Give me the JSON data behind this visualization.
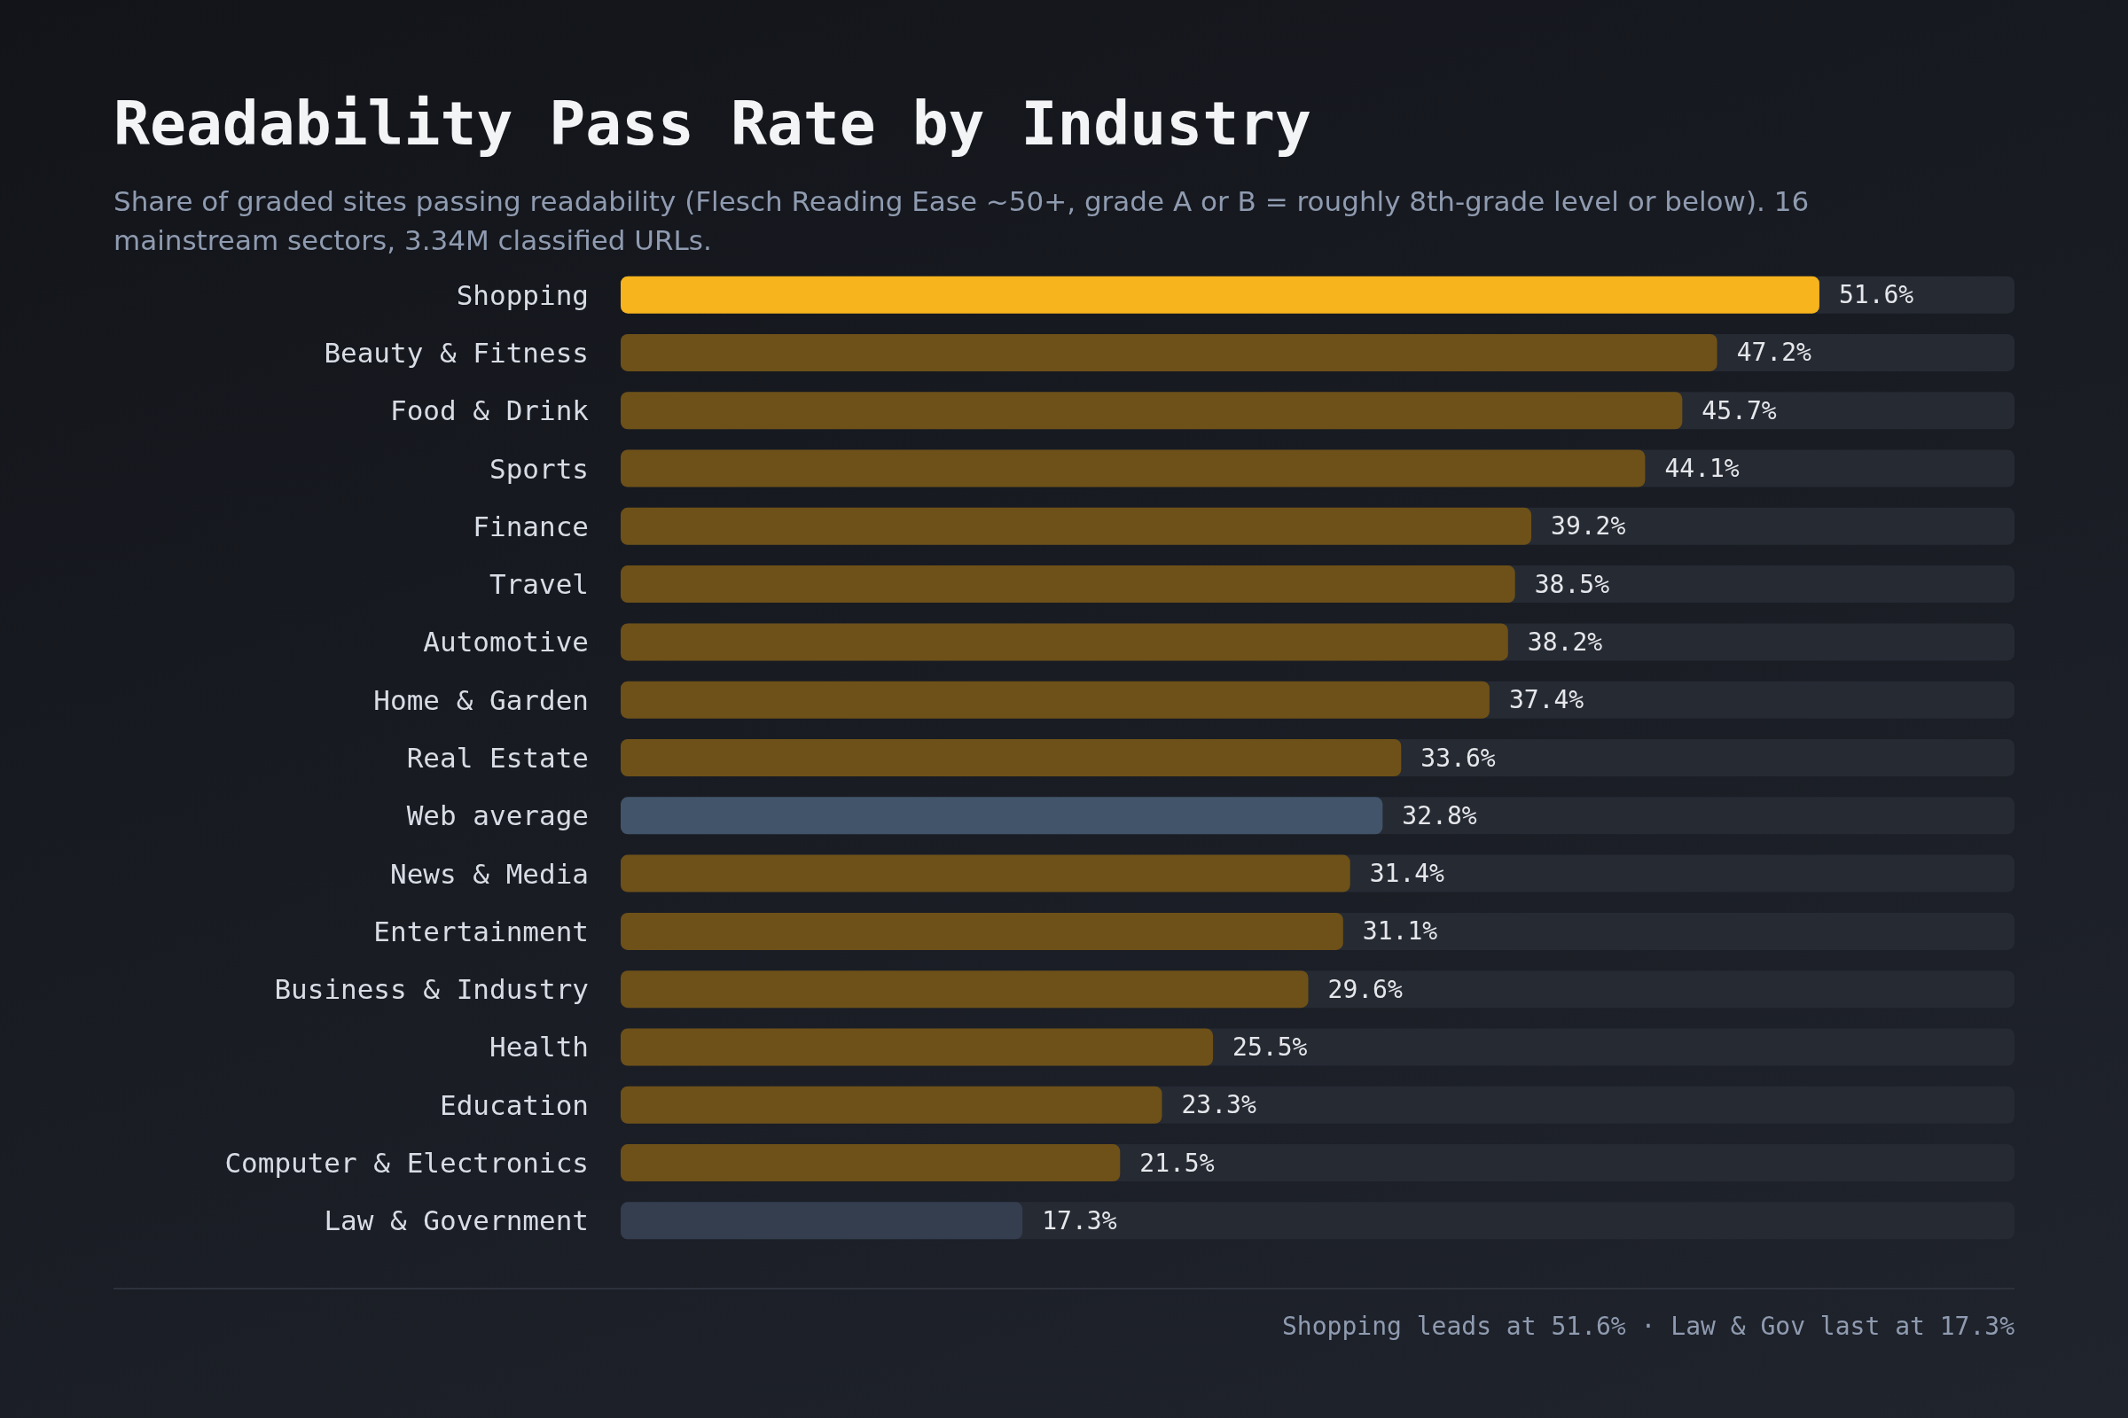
{
  "chart_data": {
    "type": "bar",
    "orientation": "horizontal",
    "title": "Readability Pass Rate by Industry",
    "subtitle": "Share of graded sites passing readability (Flesch Reading Ease ~50+, grade A or B = roughly 8th-grade level or below). 16 mainstream sectors, 3.34M classified URLs.",
    "categories": [
      "Shopping",
      "Beauty & Fitness",
      "Food & Drink",
      "Sports",
      "Finance",
      "Travel",
      "Automotive",
      "Home & Garden",
      "Real Estate",
      "Web average",
      "News & Media",
      "Entertainment",
      "Business & Industry",
      "Health",
      "Education",
      "Computer & Electronics",
      "Law & Government"
    ],
    "values": [
      51.6,
      47.2,
      45.7,
      44.1,
      39.2,
      38.5,
      38.2,
      37.4,
      33.6,
      32.8,
      31.4,
      31.1,
      29.6,
      25.5,
      23.3,
      21.5,
      17.3
    ],
    "colors": [
      "#f8b41c",
      "#6e5118",
      "#6e5118",
      "#6e5118",
      "#6e5118",
      "#6e5118",
      "#6e5118",
      "#6e5118",
      "#6e5118",
      "#425469",
      "#6e5118",
      "#6e5118",
      "#6e5118",
      "#6e5118",
      "#6e5118",
      "#6e5118",
      "#353e4f"
    ],
    "value_labels": [
      "51.6%",
      "47.2%",
      "45.7%",
      "44.1%",
      "39.2%",
      "38.5%",
      "38.2%",
      "37.4%",
      "33.6%",
      "32.8%",
      "31.4%",
      "31.1%",
      "29.6%",
      "25.5%",
      "23.3%",
      "21.5%",
      "17.3%"
    ],
    "xlim": [
      0,
      60
    ],
    "tick_labels": "y",
    "grid": false,
    "annotations": [
      "Shopping leads at 51.6% · Law & Gov last at 17.3%"
    ]
  }
}
